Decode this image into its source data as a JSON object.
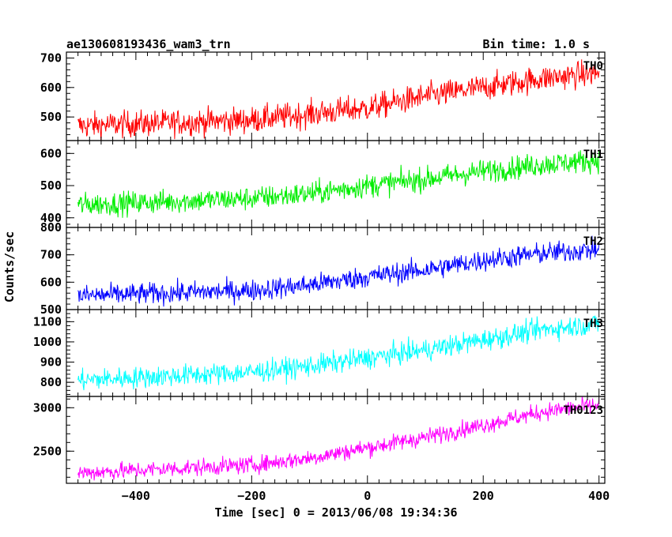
{
  "chart_data": {
    "type": "line",
    "title": "ae130608193436_wam3_trn",
    "bin_time_label": "Bin time: 1.0 s",
    "xlabel": "Time [sec] 0 = 2013/06/08 19:34:36",
    "ylabel": "Counts/sec",
    "xlim": [
      -520,
      410
    ],
    "x_ticks": [
      -400,
      -200,
      0,
      200,
      400
    ],
    "x_tick_labels": [
      "−400",
      "−200",
      "0",
      "200",
      "400"
    ],
    "grid": false,
    "panels": [
      {
        "name": "TH0",
        "color": "#ff0000",
        "ylim": [
          420,
          720
        ],
        "y_ticks": [
          500,
          600,
          700
        ],
        "trend": [
          [
            -500,
            470
          ],
          [
            -200,
            490
          ],
          [
            -100,
            510
          ],
          [
            0,
            530
          ],
          [
            100,
            570
          ],
          [
            200,
            600
          ],
          [
            300,
            630
          ],
          [
            400,
            650
          ]
        ],
        "noise": 32
      },
      {
        "name": "TH1",
        "color": "#00ee00",
        "ylim": [
          370,
          640
        ],
        "y_ticks": [
          400,
          500,
          600
        ],
        "trend": [
          [
            -500,
            440
          ],
          [
            -200,
            460
          ],
          [
            -100,
            475
          ],
          [
            0,
            500
          ],
          [
            100,
            520
          ],
          [
            200,
            545
          ],
          [
            300,
            565
          ],
          [
            400,
            580
          ]
        ],
        "noise": 26
      },
      {
        "name": "TH2",
        "color": "#0000ff",
        "ylim": [
          500,
          800
        ],
        "y_ticks": [
          500,
          600,
          700,
          800
        ],
        "trend": [
          [
            -500,
            550
          ],
          [
            -200,
            570
          ],
          [
            -100,
            590
          ],
          [
            0,
            620
          ],
          [
            100,
            645
          ],
          [
            200,
            680
          ],
          [
            300,
            705
          ],
          [
            400,
            720
          ]
        ],
        "noise": 28
      },
      {
        "name": "TH3",
        "color": "#00ffff",
        "ylim": [
          730,
          1160
        ],
        "y_ticks": [
          800,
          900,
          1000,
          1100
        ],
        "trend": [
          [
            -500,
            810
          ],
          [
            -200,
            850
          ],
          [
            -100,
            880
          ],
          [
            0,
            920
          ],
          [
            100,
            960
          ],
          [
            200,
            1010
          ],
          [
            300,
            1060
          ],
          [
            400,
            1090
          ]
        ],
        "noise": 38
      },
      {
        "name": "TH0123",
        "color": "#ff00ff",
        "ylim": [
          2130,
          3130
        ],
        "y_ticks": [
          2500,
          3000
        ],
        "trend": [
          [
            -500,
            2250
          ],
          [
            -200,
            2340
          ],
          [
            -100,
            2420
          ],
          [
            0,
            2540
          ],
          [
            100,
            2660
          ],
          [
            200,
            2800
          ],
          [
            300,
            2950
          ],
          [
            400,
            3030
          ]
        ],
        "noise": 70
      }
    ]
  }
}
